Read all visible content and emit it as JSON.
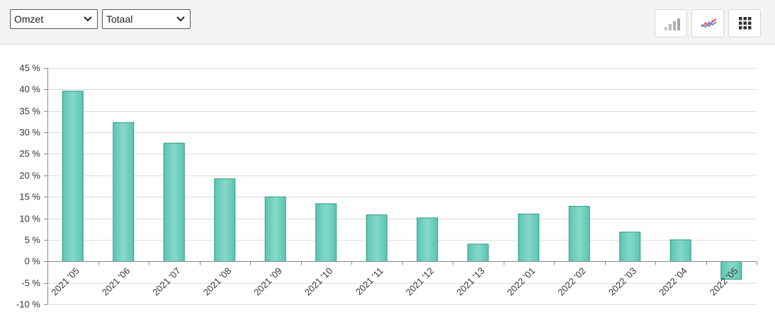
{
  "toolbar": {
    "metric_select": {
      "value": "Omzet"
    },
    "scope_select": {
      "value": "Totaal"
    },
    "buttons": [
      {
        "name": "bar-chart-button",
        "icon": "bar-chart-icon"
      },
      {
        "name": "line-chart-button",
        "icon": "line-chart-icon"
      },
      {
        "name": "table-view-button",
        "icon": "grid-icon"
      }
    ]
  },
  "colors": {
    "bar_fill": "#5cc4b1",
    "bar_fill_light": "#86d9ca",
    "bar_stroke": "#2f9a85",
    "grid": "#dddddd",
    "axis": "#888888"
  },
  "chart_data": {
    "type": "bar",
    "title": "",
    "xlabel": "",
    "ylabel": "",
    "categories": [
      "2021 '05",
      "2021 '06",
      "2021 '07",
      "2021 '08",
      "2021 '09",
      "2021 '10",
      "2021 '11",
      "2021 '12",
      "2021 '13",
      "2022 '01",
      "2022 '02",
      "2022 '03",
      "2022 '04",
      "2022 '05"
    ],
    "values": [
      39.6,
      32.3,
      27.5,
      19.2,
      15.0,
      13.4,
      10.8,
      10.1,
      4.0,
      11.0,
      12.8,
      6.8,
      5.0,
      -4.2
    ],
    "ylim": [
      -10,
      45
    ],
    "yticks": [
      {
        "value": 45,
        "label": "45 %"
      },
      {
        "value": 40,
        "label": "40 %"
      },
      {
        "value": 35,
        "label": "35 %"
      },
      {
        "value": 30,
        "label": "30 %"
      },
      {
        "value": 25,
        "label": "25 %"
      },
      {
        "value": 20,
        "label": "20 %"
      },
      {
        "value": 15,
        "label": "15 %"
      },
      {
        "value": 10,
        "label": "10 %"
      },
      {
        "value": 5,
        "label": "5 %"
      },
      {
        "value": 0,
        "label": "0 %"
      },
      {
        "value": -5,
        "label": "-5 %"
      },
      {
        "value": -10,
        "label": "-10 %"
      }
    ],
    "grid": true,
    "legend": "none"
  }
}
